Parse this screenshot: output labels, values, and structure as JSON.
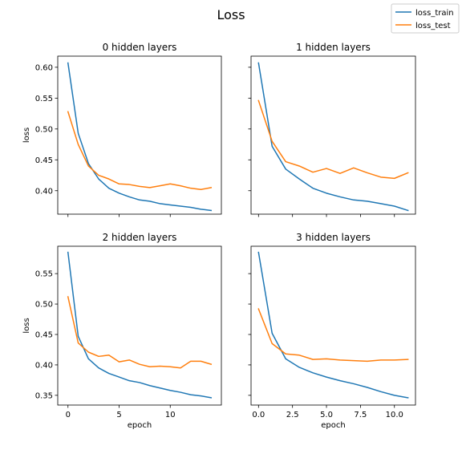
{
  "figure": {
    "title": "Loss",
    "legend": {
      "placement": "top-right",
      "entries": [
        {
          "label": "loss_train",
          "color": "#1f77b4"
        },
        {
          "label": "loss_test",
          "color": "#ff7f0e"
        }
      ]
    }
  },
  "chart_data": [
    {
      "type": "line",
      "title": "0 hidden layers",
      "xlabel": "",
      "ylabel": "loss",
      "xlim": [
        -1,
        15
      ],
      "ylim": [
        0.362,
        0.618
      ],
      "xticks": [
        0,
        5,
        10
      ],
      "xtick_labels": [],
      "yticks": [
        0.4,
        0.45,
        0.5,
        0.55,
        0.6
      ],
      "ytick_labels": [
        "0.40",
        "0.45",
        "0.50",
        "0.55",
        "0.60"
      ],
      "x": [
        0,
        1,
        2,
        3,
        4,
        5,
        6,
        7,
        8,
        9,
        10,
        11,
        12,
        13,
        14
      ],
      "series": [
        {
          "name": "loss_train",
          "color": "#1f77b4",
          "values": [
            0.607,
            0.493,
            0.444,
            0.419,
            0.404,
            0.396,
            0.39,
            0.385,
            0.383,
            0.379,
            0.377,
            0.375,
            0.373,
            0.37,
            0.368
          ]
        },
        {
          "name": "loss_test",
          "color": "#ff7f0e",
          "values": [
            0.528,
            0.475,
            0.44,
            0.425,
            0.419,
            0.411,
            0.41,
            0.407,
            0.405,
            0.408,
            0.411,
            0.408,
            0.404,
            0.402,
            0.405
          ]
        }
      ]
    },
    {
      "type": "line",
      "title": "1 hidden layers",
      "xlabel": "",
      "ylabel": "",
      "xlim": [
        -0.55,
        11.55
      ],
      "ylim": [
        0.362,
        0.618
      ],
      "xticks": [
        0,
        2.5,
        5,
        7.5,
        10
      ],
      "xtick_labels": [],
      "yticks": [
        0.4,
        0.45,
        0.5,
        0.55,
        0.6
      ],
      "ytick_labels": [],
      "x": [
        0,
        1,
        2,
        3,
        4,
        5,
        6,
        7,
        8,
        9,
        10,
        11
      ],
      "series": [
        {
          "name": "loss_train",
          "color": "#1f77b4",
          "values": [
            0.607,
            0.472,
            0.435,
            0.419,
            0.404,
            0.396,
            0.39,
            0.385,
            0.383,
            0.379,
            0.375,
            0.368
          ]
        },
        {
          "name": "loss_test",
          "color": "#ff7f0e",
          "values": [
            0.546,
            0.48,
            0.447,
            0.44,
            0.43,
            0.436,
            0.428,
            0.437,
            0.429,
            0.422,
            0.42,
            0.429
          ]
        }
      ]
    },
    {
      "type": "line",
      "title": "2 hidden layers",
      "xlabel": "epoch",
      "ylabel": "loss",
      "xlim": [
        -1,
        15
      ],
      "ylim": [
        0.334,
        0.595
      ],
      "xticks": [
        0,
        5,
        10
      ],
      "xtick_labels": [
        "0",
        "5",
        "10"
      ],
      "yticks": [
        0.35,
        0.4,
        0.45,
        0.5,
        0.55
      ],
      "ytick_labels": [
        "0.35",
        "0.40",
        "0.45",
        "0.50",
        "0.55"
      ],
      "x": [
        0,
        1,
        2,
        3,
        4,
        5,
        6,
        7,
        8,
        9,
        10,
        11,
        12,
        13,
        14
      ],
      "series": [
        {
          "name": "loss_train",
          "color": "#1f77b4",
          "values": [
            0.585,
            0.447,
            0.41,
            0.395,
            0.386,
            0.38,
            0.374,
            0.371,
            0.366,
            0.362,
            0.358,
            0.355,
            0.351,
            0.349,
            0.346
          ]
        },
        {
          "name": "loss_test",
          "color": "#ff7f0e",
          "values": [
            0.512,
            0.436,
            0.421,
            0.414,
            0.416,
            0.405,
            0.408,
            0.401,
            0.397,
            0.398,
            0.397,
            0.395,
            0.406,
            0.406,
            0.401
          ]
        }
      ]
    },
    {
      "type": "line",
      "title": "3 hidden layers",
      "xlabel": "epoch",
      "ylabel": "",
      "xlim": [
        -0.55,
        11.55
      ],
      "ylim": [
        0.334,
        0.595
      ],
      "xticks": [
        0,
        2.5,
        5,
        7.5,
        10
      ],
      "xtick_labels": [
        "0.0",
        "2.5",
        "5.0",
        "7.5",
        "10.0"
      ],
      "yticks": [
        0.35,
        0.4,
        0.45,
        0.5,
        0.55
      ],
      "ytick_labels": [],
      "x": [
        0,
        1,
        2,
        3,
        4,
        5,
        6,
        7,
        8,
        9,
        10,
        11
      ],
      "series": [
        {
          "name": "loss_train",
          "color": "#1f77b4",
          "values": [
            0.585,
            0.452,
            0.41,
            0.396,
            0.387,
            0.38,
            0.374,
            0.369,
            0.363,
            0.356,
            0.35,
            0.346
          ]
        },
        {
          "name": "loss_test",
          "color": "#ff7f0e",
          "values": [
            0.492,
            0.435,
            0.418,
            0.416,
            0.409,
            0.41,
            0.408,
            0.407,
            0.406,
            0.408,
            0.408,
            0.409
          ]
        }
      ]
    }
  ]
}
